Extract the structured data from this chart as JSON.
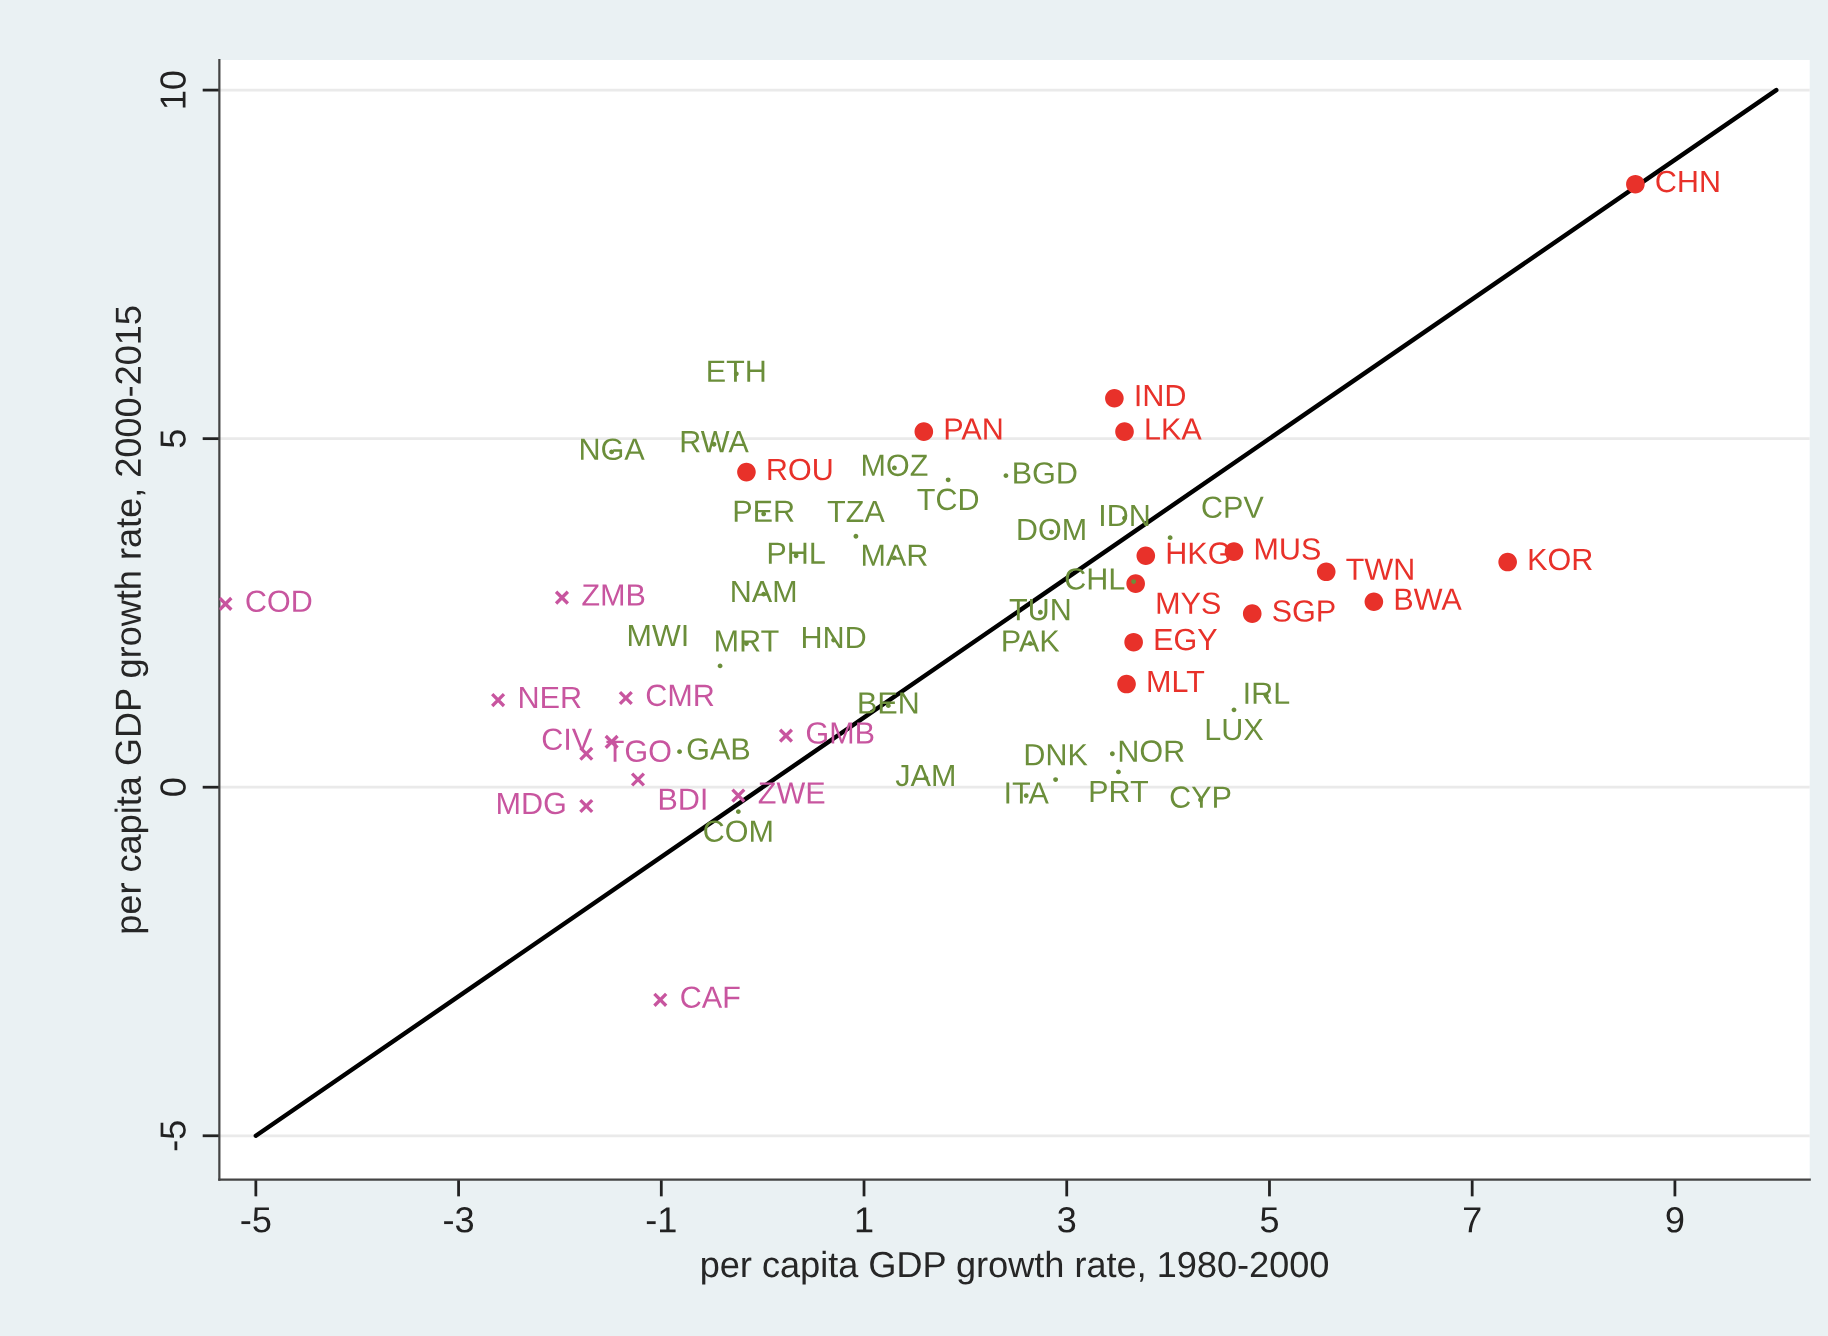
{
  "chart_data": {
    "type": "scatter",
    "xlabel": "per capita GDP growth rate, 1980-2000",
    "ylabel": "per capita GDP growth rate, 2000-2015",
    "xlim": [
      -5.36,
      10.33
    ],
    "ylim": [
      -5.63,
      10.43
    ],
    "xticks": [
      -5,
      -3,
      -1,
      1,
      3,
      5,
      7,
      9
    ],
    "yticks": [
      -5,
      0,
      5,
      10
    ],
    "grid": "y",
    "legend": false,
    "series": [
      {
        "marker": "circle",
        "color": "#e8312a",
        "x": [
          8.61,
          3.47,
          3.57,
          1.59,
          -0.16,
          3.78,
          4.65,
          3.68,
          5.56,
          7.35,
          4.83,
          6.03,
          3.66,
          3.59
        ],
        "values": [
          8.65,
          5.58,
          5.1,
          5.1,
          4.52,
          3.32,
          3.38,
          2.92,
          3.09,
          3.23,
          2.49,
          2.66,
          2.08,
          1.48
        ],
        "value_labels": [
          "CHN",
          "IND",
          "LKA",
          "PAN",
          "ROU",
          "HKG",
          "MUS",
          "MYS",
          "TWN",
          "KOR",
          "SGP",
          "BWA",
          "EGY",
          "MLT"
        ]
      },
      {
        "marker": "cross",
        "color": "#c8559f",
        "x": [
          -5.3,
          -1.98,
          -2.61,
          -1.35,
          -1.74,
          -1.49,
          -1.23,
          -1.74,
          -1.01,
          0.23,
          -0.24
        ],
        "values": [
          2.63,
          2.72,
          1.25,
          1.28,
          0.48,
          0.65,
          0.11,
          -0.27,
          -3.05,
          0.74,
          -0.12
        ],
        "value_labels": [
          "COD",
          "ZMB",
          "NER",
          "CMR",
          "TGO",
          "CIV",
          "BDI",
          "MDG",
          "CAF",
          "GMB",
          "ZWE"
        ]
      },
      {
        "marker": "none",
        "color": "#6b8e3a",
        "x": [
          -0.26,
          -1.49,
          -0.48,
          1.3,
          1.83,
          2.4,
          0.01,
          0.33,
          2.85,
          3.57,
          4.02,
          1.3,
          0.92,
          0.01,
          3.66,
          2.74,
          2.64,
          -0.16,
          0.7,
          -0.42,
          -0.82,
          4.65,
          4.97,
          4.32,
          2.6,
          2.89,
          3.51,
          1.61,
          3.45,
          -0.24,
          1.24
        ],
        "values": [
          5.93,
          4.81,
          4.92,
          4.58,
          4.41,
          4.47,
          3.92,
          3.32,
          3.66,
          3.86,
          3.58,
          3.29,
          3.6,
          2.77,
          2.95,
          2.51,
          2.06,
          2.06,
          2.11,
          1.74,
          0.51,
          1.11,
          1.31,
          -0.18,
          -0.12,
          0.11,
          0.22,
          0.13,
          0.48,
          -0.35,
          1.17
        ],
        "value_labels": [
          "ETH",
          "NGA",
          "RWA",
          "MOZ",
          "TCD",
          "BGD",
          "PER",
          "PHL",
          "DOM",
          "IDN",
          "CPV",
          "MAR",
          "TZA",
          "NAM",
          "CHL",
          "TUN",
          "PAK",
          "MRT",
          "HND",
          "MWI",
          "GAB",
          "LUX",
          "IRL",
          "CYP",
          "ITA",
          "DNK",
          "PRT",
          "JAM",
          "NOR",
          "COM",
          "BEN"
        ]
      },
      {
        "type": "line",
        "color": "#000000",
        "line_style": "solid",
        "x": [
          -5,
          10
        ],
        "values": [
          -5,
          10
        ]
      }
    ]
  }
}
